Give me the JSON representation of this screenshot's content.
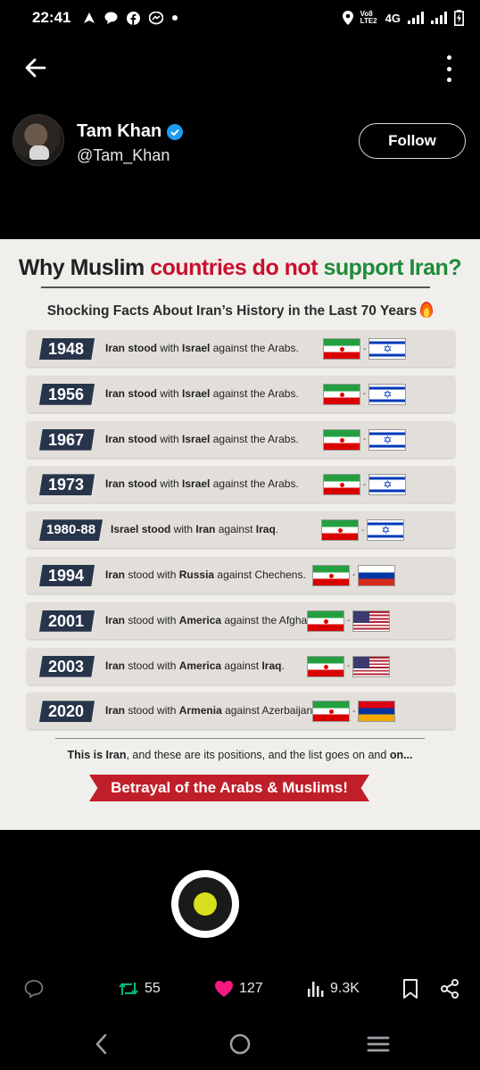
{
  "status_bar": {
    "time": "22:41",
    "network_label": "4G",
    "volte_label": "Vo8 LTE2",
    "left_icons": [
      "navigation-icon",
      "chat-bubble-icon",
      "facebook-icon",
      "messenger-icon",
      "dot-icon"
    ],
    "right_icons": [
      "location-icon",
      "signal-icon",
      "signal-icon",
      "battery-charging-icon"
    ]
  },
  "top_bar": {
    "back_icon": "arrow-left-icon",
    "menu_icon": "more-vertical-icon"
  },
  "profile": {
    "display_name": "Tam Khan",
    "handle": "@Tam_Khan",
    "verified": true,
    "follow_label": "Follow"
  },
  "infographic": {
    "title_part1": "Why Muslim ",
    "title_part2": "countries do not ",
    "title_part3": "support Iran?",
    "subtitle": "Shocking Facts About Iran’s History in the Last 70 Years",
    "rows": [
      {
        "year": "1948",
        "pre": "Iran stood",
        "mid1": " with ",
        "ally": "Israel",
        "mid2": " against the Arabs.",
        "flags": [
          "iran",
          "israel"
        ]
      },
      {
        "year": "1956",
        "pre": "Iran stood",
        "mid1": " with ",
        "ally": "Israel",
        "mid2": " against the Arabs.",
        "flags": [
          "iran",
          "israel"
        ]
      },
      {
        "year": "1967",
        "pre": "Iran stood",
        "mid1": " with ",
        "ally": "Israel",
        "mid2": " against the Arabs.",
        "flags": [
          "iran",
          "israel"
        ]
      },
      {
        "year": "1973",
        "pre": "Iran stood",
        "mid1": " with ",
        "ally": "Israel",
        "mid2": " against the Arabs.",
        "flags": [
          "iran",
          "israel"
        ]
      },
      {
        "year": "1980-88",
        "pre": "Israel stood",
        "mid1": " with ",
        "ally": "Iran",
        "mid2": " against ",
        "target": "Iraq",
        "end": ".",
        "flags": [
          "iran",
          "israel"
        ]
      },
      {
        "year": "1994",
        "pre": "Iran",
        "mid1": " stood with ",
        "ally": "Russia",
        "mid2": " against Chechens.",
        "flags": [
          "iran",
          "russia"
        ]
      },
      {
        "year": "2001",
        "pre": "Iran",
        "mid1": " stood with ",
        "ally": "America",
        "mid2": " against the Afghan.",
        "flags": [
          "iran",
          "usa"
        ]
      },
      {
        "year": "2003",
        "pre": "Iran",
        "mid1": " stood with ",
        "ally": "America",
        "mid2": " against ",
        "target": "Iraq",
        "end": ".",
        "flags": [
          "iran",
          "usa"
        ]
      },
      {
        "year": "2020",
        "pre": "Iran",
        "mid1": " stood with ",
        "ally": "Armenia",
        "mid2": " against Azerbaijan.",
        "flags": [
          "iran",
          "armenia"
        ]
      }
    ],
    "footer_bold1": "This is Iran",
    "footer_mid": ", and these are its positions, and the list goes on and ",
    "footer_bold2": "on...",
    "banner": "Betrayal of the Arabs & Muslims!"
  },
  "actions": {
    "reply_icon": "reply-icon",
    "retweets": "55",
    "likes": "127",
    "views": "9.3K",
    "bookmark_icon": "bookmark-icon",
    "share_icon": "share-icon"
  },
  "colors": {
    "background": "#000000",
    "retweet": "#00ba7c",
    "like": "#f91880",
    "verified": "#1d9bf0",
    "banner": "#c01f2a",
    "year_tag": "#27344a"
  },
  "nav_bar": {
    "icons": [
      "nav-back-icon",
      "nav-home-icon",
      "nav-recents-icon"
    ]
  }
}
